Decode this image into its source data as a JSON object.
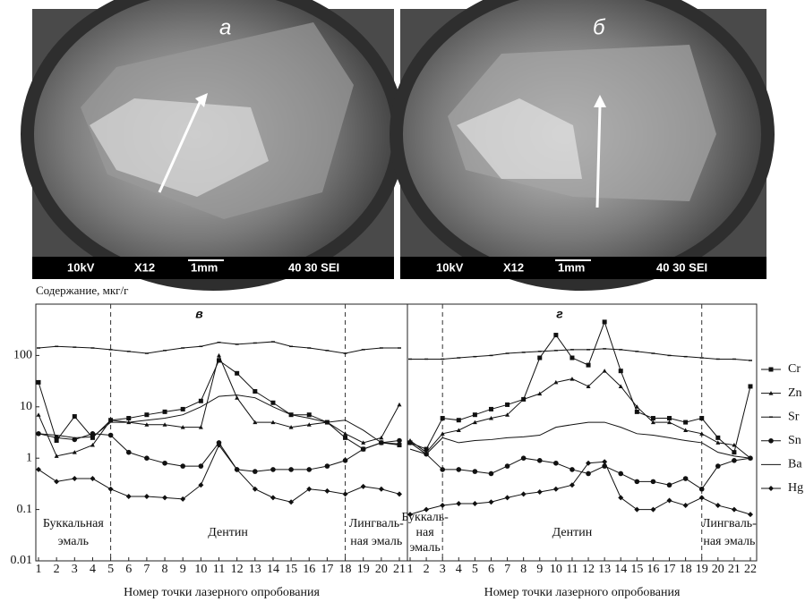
{
  "images": [
    {
      "label": "а",
      "info": [
        "10kV",
        "X12",
        "1mm",
        "40 30 SEI"
      ]
    },
    {
      "label": "б",
      "info": [
        "10kV",
        "X12",
        "1mm",
        "40 30 SEI"
      ]
    }
  ],
  "chart_data": [
    {
      "type": "line",
      "title": "в",
      "y_label": "Содержание, мкг/г",
      "x_label": "Номер точки лазерного опробования",
      "x": [
        1,
        2,
        3,
        4,
        5,
        6,
        7,
        8,
        9,
        10,
        11,
        12,
        13,
        14,
        15,
        16,
        17,
        18,
        19,
        20,
        21
      ],
      "xlim": [
        1,
        21
      ],
      "xticks": [
        1,
        2,
        3,
        4,
        5,
        6,
        7,
        8,
        9,
        10,
        11,
        12,
        13,
        14,
        15,
        16,
        17,
        18,
        19,
        20,
        21
      ],
      "ylim": [
        0.01,
        1000
      ],
      "yticks": [
        0.01,
        0.1,
        1,
        10,
        100
      ],
      "log_scale": true,
      "dividers": [
        5,
        18
      ],
      "regions": [
        [
          "Буккальная",
          "эмаль"
        ],
        [
          "Дентин"
        ],
        [
          "Лингваль-",
          "ная эмаль"
        ]
      ],
      "series": [
        {
          "color": "#111",
          "marker": "square",
          "values": [
            30,
            2.2,
            6.5,
            2.5,
            5.5,
            6,
            7,
            8,
            9,
            13,
            80,
            45,
            20,
            12,
            7,
            7,
            5,
            2.5,
            1.5,
            2,
            1.8
          ]
        },
        {
          "color": "#111",
          "marker": "triangle",
          "values": [
            7,
            1.1,
            1.3,
            1.8,
            5.5,
            5,
            4.5,
            4.5,
            4,
            4,
            100,
            15,
            5,
            5,
            4,
            4.5,
            5,
            3,
            2,
            2.5,
            11
          ]
        },
        {
          "color": "#111",
          "marker": "dash",
          "values": [
            140,
            150,
            145,
            140,
            130,
            120,
            110,
            125,
            140,
            150,
            180,
            165,
            175,
            185,
            150,
            140,
            125,
            110,
            130,
            140,
            140
          ]
        },
        {
          "color": "#111",
          "marker": "circle",
          "values": [
            3,
            2.5,
            2.3,
            3,
            2.8,
            1.3,
            1,
            0.8,
            0.7,
            0.7,
            2,
            0.6,
            0.55,
            0.6,
            0.6,
            0.6,
            0.7,
            0.9,
            1.5,
            2,
            2.2
          ]
        },
        {
          "color": "#111",
          "marker": "none",
          "values": [
            3,
            2.8,
            2.5,
            2.6,
            5,
            5,
            5.5,
            6,
            7,
            10,
            16,
            17,
            15,
            10,
            7,
            6,
            5,
            5.5,
            3.5,
            2,
            1.9
          ]
        },
        {
          "color": "#111",
          "marker": "diamond",
          "values": [
            0.6,
            0.35,
            0.4,
            0.4,
            0.25,
            0.18,
            0.18,
            0.17,
            0.16,
            0.3,
            1.8,
            0.6,
            0.25,
            0.17,
            0.14,
            0.25,
            0.23,
            0.2,
            0.28,
            0.25,
            0.2
          ]
        }
      ]
    },
    {
      "type": "line",
      "title": "г",
      "x_label": "Номер точки лазерного опробования",
      "x": [
        1,
        2,
        3,
        4,
        5,
        6,
        7,
        8,
        9,
        10,
        11,
        12,
        13,
        14,
        15,
        16,
        17,
        18,
        19,
        20,
        21,
        22
      ],
      "xlim": [
        1,
        22
      ],
      "xticks": [
        1,
        2,
        3,
        4,
        5,
        6,
        7,
        8,
        9,
        10,
        11,
        12,
        13,
        14,
        15,
        16,
        17,
        18,
        19,
        20,
        21,
        22
      ],
      "ylim": [
        0.01,
        1000
      ],
      "log_scale": true,
      "dividers": [
        3,
        19
      ],
      "legend": "right",
      "regions": [
        [
          "Буккаль-",
          "ная",
          "эмаль"
        ],
        [
          "Дентин"
        ],
        [
          "Лингваль-",
          "ная эмаль"
        ]
      ],
      "series": [
        {
          "name": "Cr",
          "color": "#111",
          "marker": "square",
          "values": [
            2,
            1.5,
            6,
            5.5,
            7,
            9,
            11,
            14,
            90,
            250,
            90,
            65,
            450,
            50,
            8,
            6,
            6,
            5,
            6,
            2.5,
            1.3,
            25
          ]
        },
        {
          "name": "Zn",
          "color": "#111",
          "marker": "triangle",
          "values": [
            2.2,
            1.3,
            3,
            3.5,
            5,
            6,
            7,
            14,
            18,
            30,
            35,
            25,
            50,
            25,
            10,
            5,
            5,
            3.5,
            3,
            2,
            1.8,
            1
          ]
        },
        {
          "name": "Sr",
          "color": "#111",
          "marker": "dash",
          "values": [
            85,
            85,
            85,
            90,
            95,
            100,
            110,
            115,
            120,
            125,
            130,
            130,
            135,
            130,
            120,
            110,
            100,
            95,
            90,
            85,
            85,
            80
          ]
        },
        {
          "name": "Sn",
          "color": "#111",
          "marker": "circle",
          "values": [
            2,
            1.2,
            0.6,
            0.6,
            0.55,
            0.5,
            0.7,
            1,
            0.9,
            0.8,
            0.6,
            0.5,
            0.7,
            0.5,
            0.35,
            0.35,
            0.3,
            0.4,
            0.25,
            0.7,
            0.9,
            1
          ]
        },
        {
          "name": "Ba",
          "color": "#111",
          "marker": "none",
          "values": [
            1.5,
            1.2,
            2.5,
            2,
            2.2,
            2.3,
            2.5,
            2.6,
            2.8,
            4,
            4.5,
            5,
            5,
            4,
            3,
            2.8,
            2.5,
            2.2,
            2,
            1.3,
            1.1,
            1
          ]
        },
        {
          "name": "Hg",
          "color": "#111",
          "marker": "diamond",
          "values": [
            0.08,
            0.1,
            0.12,
            0.13,
            0.13,
            0.14,
            0.17,
            0.2,
            0.22,
            0.25,
            0.3,
            0.8,
            0.85,
            0.17,
            0.1,
            0.1,
            0.15,
            0.12,
            0.17,
            0.12,
            0.1,
            0.08
          ]
        }
      ]
    }
  ]
}
